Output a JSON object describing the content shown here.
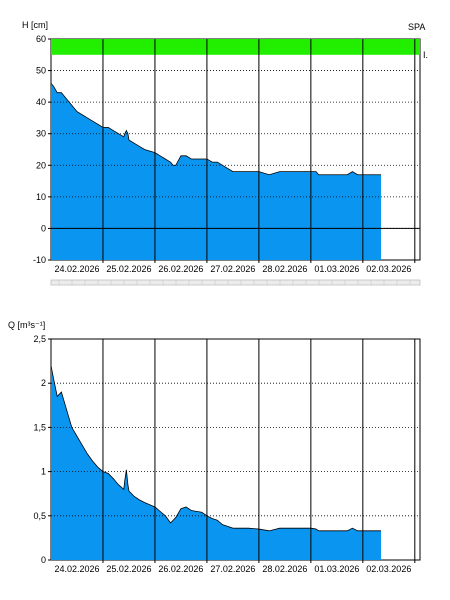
{
  "chart_data": [
    {
      "type": "area",
      "ylabel": "H [cm]",
      "corner_label": "SPA",
      "band_label": "I.",
      "band_color": "#22ee00",
      "fill_color": "#0a96f0",
      "ylim": [
        -10,
        60
      ],
      "yticks": [
        -10,
        0,
        10,
        20,
        30,
        40,
        50,
        60
      ],
      "xlim": [
        0,
        7.1
      ],
      "categories": [
        "24.02.2026",
        "25.02.2026",
        "26.02.2026",
        "27.02.2026",
        "28.02.2026",
        "01.03.2026",
        "02.03.2026"
      ],
      "band_range": [
        55,
        60
      ],
      "x": [
        0,
        0.05,
        0.12,
        0.2,
        0.3,
        0.4,
        0.5,
        0.6,
        0.7,
        0.8,
        0.9,
        1.0,
        1.1,
        1.2,
        1.3,
        1.4,
        1.42,
        1.45,
        1.48,
        1.5,
        1.6,
        1.7,
        1.8,
        2.0,
        2.1,
        2.2,
        2.3,
        2.35,
        2.4,
        2.5,
        2.6,
        2.7,
        2.8,
        2.9,
        3.0,
        3.1,
        3.2,
        3.3,
        3.4,
        3.5,
        3.6,
        3.8,
        4.0,
        4.2,
        4.4,
        4.5,
        4.6,
        4.8,
        5.0,
        5.1,
        5.15,
        5.2,
        5.4,
        5.6,
        5.7,
        5.8,
        5.9,
        6.0,
        6.1,
        6.3,
        6.35
      ],
      "values": [
        46,
        45,
        43,
        43,
        41,
        39,
        37,
        36,
        35,
        34,
        33,
        32,
        32,
        31,
        30,
        29,
        30,
        31,
        30,
        28,
        27,
        26,
        25,
        24,
        23,
        22,
        21,
        20,
        20,
        23,
        23,
        22,
        22,
        22,
        22,
        21,
        21,
        20,
        19,
        18,
        18,
        18,
        18,
        17,
        18,
        18,
        18,
        18,
        18,
        18,
        17,
        17,
        17,
        17,
        17,
        18,
        17,
        17,
        17,
        17,
        17
      ]
    },
    {
      "type": "area",
      "ylabel": "Q [m³s⁻¹]",
      "fill_color": "#0a96f0",
      "ylim": [
        0,
        2.5
      ],
      "yticks": [
        "0",
        "0,5",
        "1",
        "1,5",
        "2",
        "2,5"
      ],
      "ytick_values": [
        0,
        0.5,
        1,
        1.5,
        2,
        2.5
      ],
      "xlim": [
        0,
        7.1
      ],
      "categories": [
        "24.02.2026",
        "25.02.2026",
        "26.02.2026",
        "27.02.2026",
        "28.02.2026",
        "01.03.2026",
        "02.03.2026"
      ],
      "x": [
        0,
        0.05,
        0.12,
        0.2,
        0.3,
        0.4,
        0.5,
        0.6,
        0.7,
        0.8,
        0.9,
        1.0,
        1.1,
        1.2,
        1.3,
        1.4,
        1.42,
        1.45,
        1.48,
        1.5,
        1.6,
        1.7,
        1.8,
        2.0,
        2.1,
        2.2,
        2.3,
        2.35,
        2.4,
        2.5,
        2.6,
        2.7,
        2.8,
        2.9,
        3.0,
        3.1,
        3.2,
        3.3,
        3.4,
        3.5,
        3.6,
        3.8,
        4.0,
        4.2,
        4.4,
        4.5,
        4.6,
        4.8,
        5.0,
        5.1,
        5.15,
        5.2,
        5.4,
        5.6,
        5.7,
        5.8,
        5.9,
        6.0,
        6.1,
        6.3,
        6.35
      ],
      "values": [
        2.2,
        2.05,
        1.85,
        1.9,
        1.7,
        1.5,
        1.4,
        1.3,
        1.2,
        1.12,
        1.05,
        1.0,
        0.98,
        0.92,
        0.85,
        0.8,
        0.9,
        1.02,
        0.85,
        0.78,
        0.72,
        0.68,
        0.65,
        0.6,
        0.55,
        0.5,
        0.42,
        0.45,
        0.48,
        0.58,
        0.6,
        0.56,
        0.55,
        0.54,
        0.5,
        0.47,
        0.45,
        0.4,
        0.38,
        0.36,
        0.36,
        0.36,
        0.35,
        0.33,
        0.36,
        0.36,
        0.36,
        0.36,
        0.36,
        0.35,
        0.33,
        0.33,
        0.33,
        0.33,
        0.33,
        0.36,
        0.33,
        0.33,
        0.33,
        0.33,
        0.33
      ]
    }
  ]
}
